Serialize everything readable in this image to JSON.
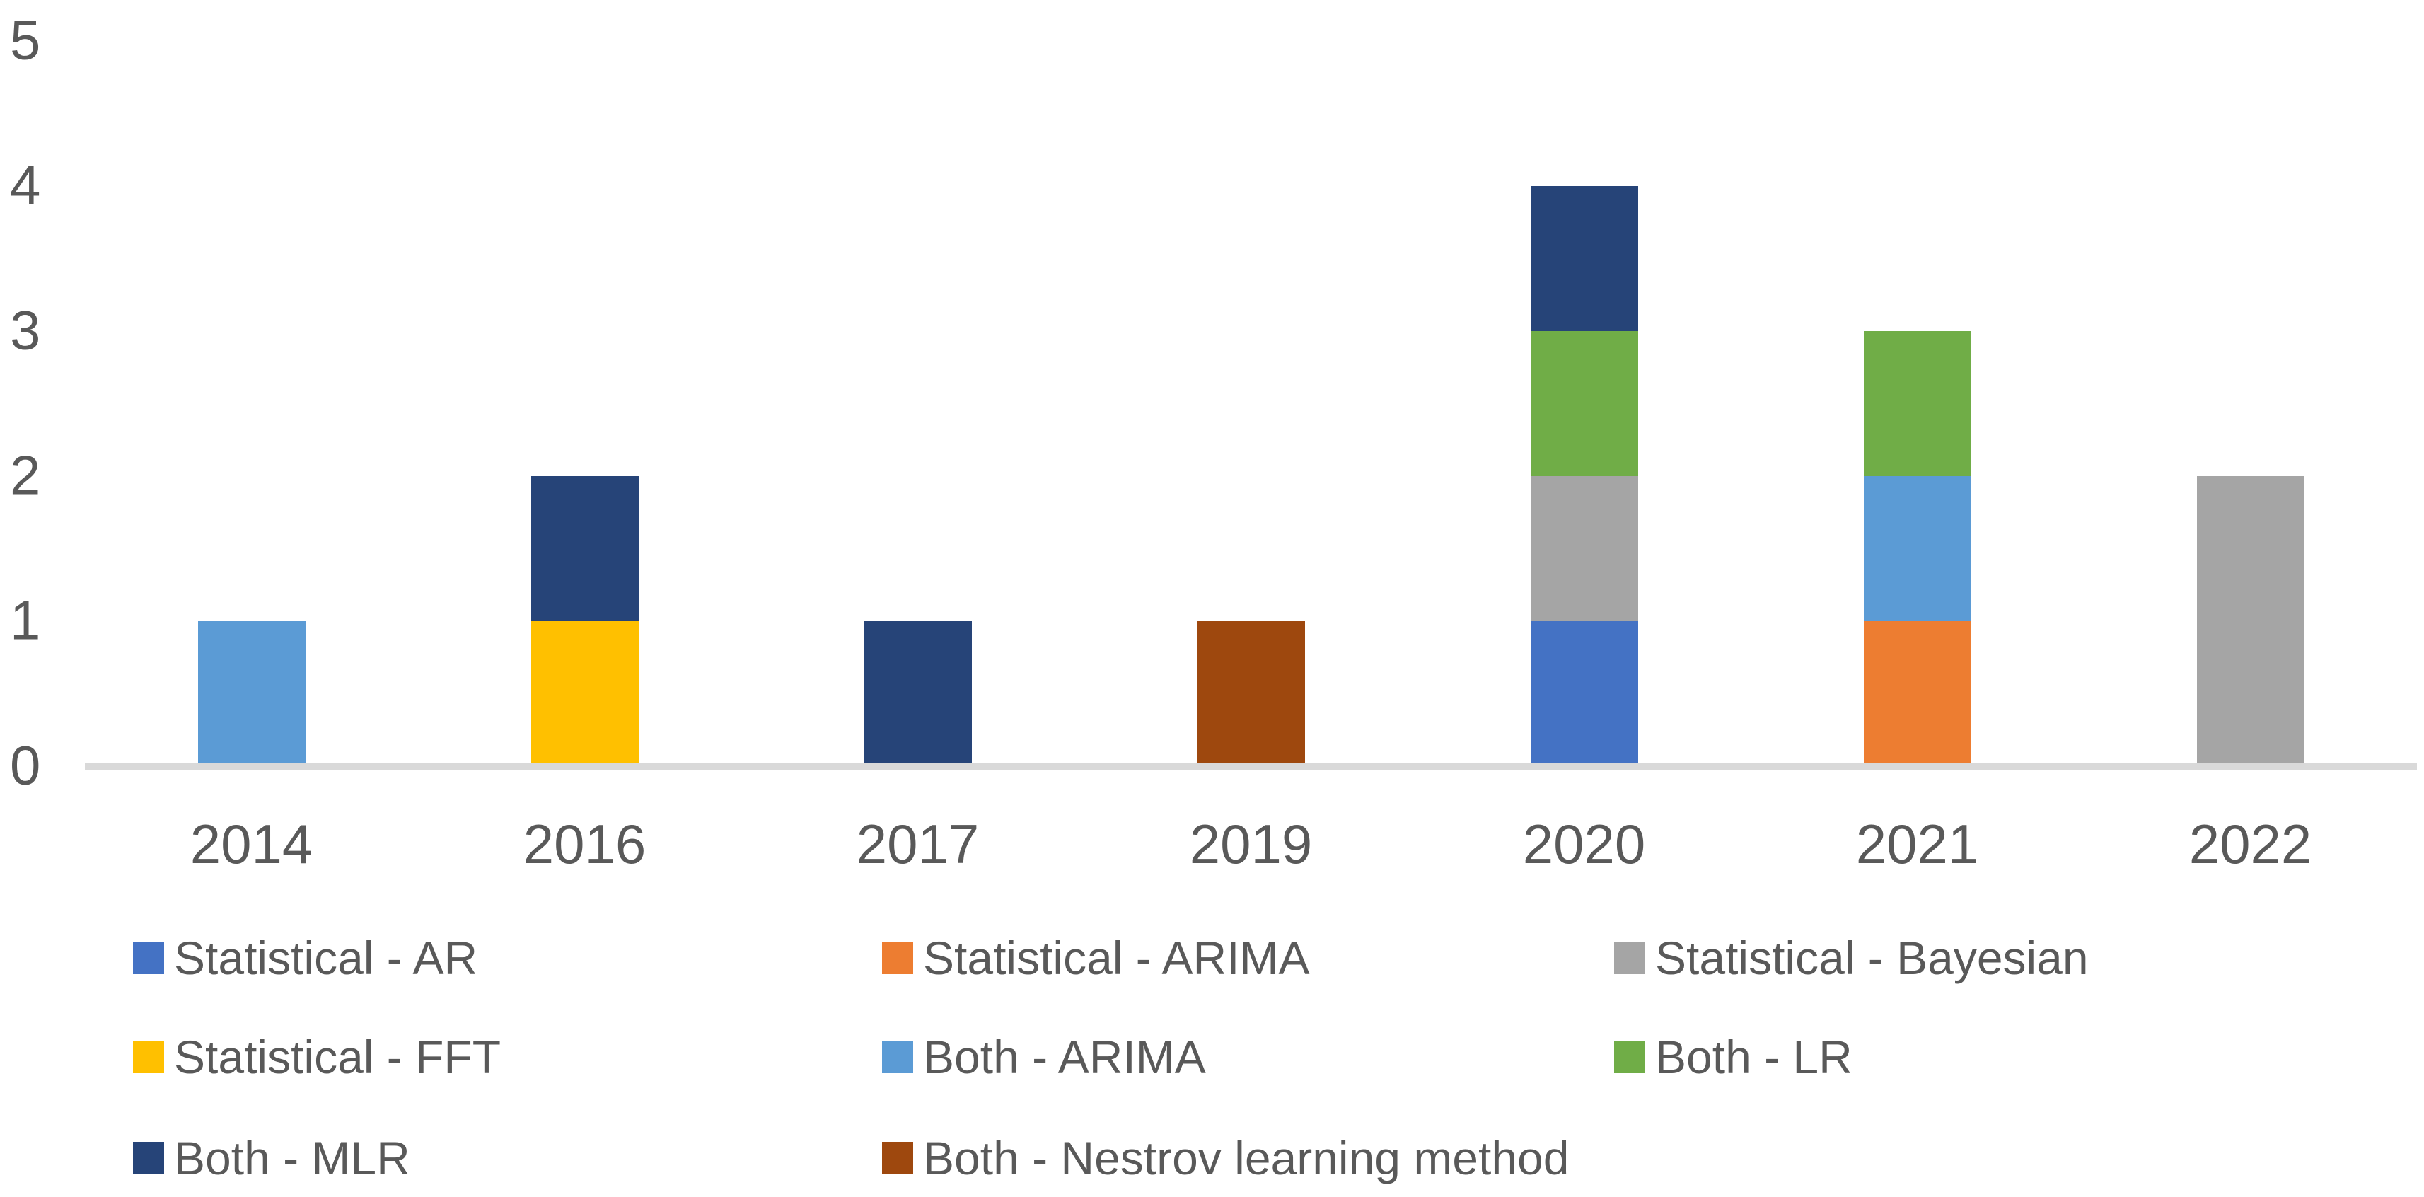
{
  "chart_data": {
    "type": "bar",
    "stacked": true,
    "title": "",
    "xlabel": "",
    "ylabel": "",
    "categories": [
      "2014",
      "2016",
      "2017",
      "2019",
      "2020",
      "2021",
      "2022"
    ],
    "series": [
      {
        "name": "Statistical - AR",
        "color": "#4472C4",
        "values": [
          0,
          0,
          0,
          0,
          1,
          0,
          0
        ]
      },
      {
        "name": "Statistical - ARIMA",
        "color": "#ED7D31",
        "values": [
          0,
          0,
          0,
          0,
          0,
          1,
          0
        ]
      },
      {
        "name": "Statistical - Bayesian",
        "color": "#A5A5A5",
        "values": [
          0,
          0,
          0,
          0,
          1,
          0,
          2
        ]
      },
      {
        "name": "Statistical - FFT",
        "color": "#FFC000",
        "values": [
          0,
          1,
          0,
          0,
          0,
          0,
          0
        ]
      },
      {
        "name": "Both - ARIMA",
        "color": "#5B9BD5",
        "values": [
          1,
          0,
          0,
          0,
          0,
          1,
          0
        ]
      },
      {
        "name": "Both - LR",
        "color": "#70AD47",
        "values": [
          0,
          0,
          0,
          0,
          1,
          1,
          0
        ]
      },
      {
        "name": "Both - MLR",
        "color": "#264478",
        "values": [
          0,
          1,
          1,
          0,
          1,
          0,
          0
        ]
      },
      {
        "name": "Both - Nestrov learning method",
        "color": "#9E480E",
        "values": [
          0,
          0,
          0,
          1,
          0,
          0,
          0
        ]
      }
    ],
    "stack_totals": [
      1,
      2,
      1,
      1,
      4,
      3,
      2
    ],
    "ylim": [
      0,
      5
    ],
    "yticks": [
      0,
      1,
      2,
      3,
      4,
      5
    ],
    "grid": false,
    "legend_position": "bottom",
    "legend_columns": 3
  },
  "styles": {
    "background": "#FFFFFF",
    "axis_line_color": "#D9D9D9",
    "label_color": "#595959"
  },
  "geometry_note": "baseline y=1083px, 205px per unit"
}
